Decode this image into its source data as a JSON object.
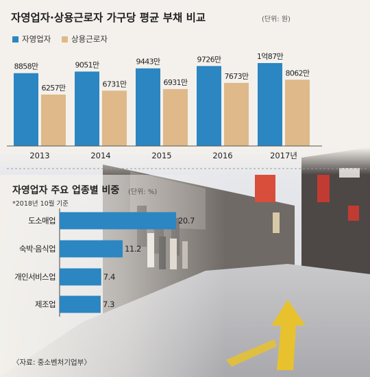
{
  "top": {
    "title": "자영업자·상용근로자 가구당 평균 부채 비교",
    "unit": "(단위: 원)"
  },
  "bottom": {
    "title": "자영업자 주요 업종별 비중",
    "unit": "(단위: %)",
    "note": "*2018년 10월 기준"
  },
  "source": "〈자료: 중소벤처기업부〉",
  "colors": {
    "self_employed": "#2b86c2",
    "wage_worker": "#dfb98a",
    "bar_h": "#2b86c2"
  },
  "chart_data": [
    {
      "type": "bar",
      "title": "자영업자·상용근로자 가구당 평균 부채 비교",
      "unit": "(단위: 원)",
      "categories": [
        "2013",
        "2014",
        "2015",
        "2016",
        "2017년"
      ],
      "series": [
        {
          "name": "자영업자",
          "values": [
            88580000,
            90510000,
            94430000,
            97260000,
            100870000
          ],
          "labels": [
            "8858만",
            "9051만",
            "9443만",
            "9726만",
            "1억87만"
          ]
        },
        {
          "name": "상용근로자",
          "values": [
            62570000,
            67310000,
            69310000,
            76730000,
            80620000
          ],
          "labels": [
            "6257만",
            "6731만",
            "6931만",
            "7673만",
            "8062만"
          ]
        }
      ],
      "legend": "top-left",
      "grid": false
    },
    {
      "type": "bar",
      "orientation": "horizontal",
      "title": "자영업자 주요 업종별 비중",
      "unit": "(단위: %)",
      "categories": [
        "도소매업",
        "숙박·음식업",
        "개인서비스업",
        "제조업"
      ],
      "values": [
        20.7,
        11.2,
        7.4,
        7.3
      ],
      "labels": [
        "20.7",
        "11.2",
        "7.4",
        "7.3"
      ],
      "grid": false
    }
  ]
}
